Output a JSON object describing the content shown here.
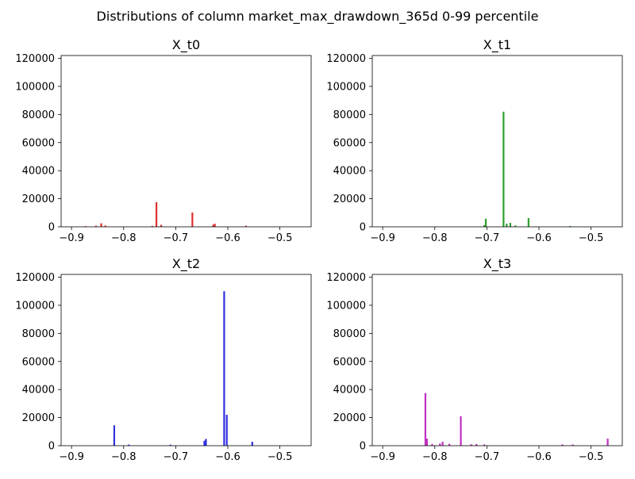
{
  "figure": {
    "suptitle": "Distributions of column market_max_drawdown_365d 0-99 percentile"
  },
  "chart_data": [
    {
      "type": "bar",
      "title": "X_t0",
      "color": "#e03030",
      "xlim": [
        -0.92,
        -0.44
      ],
      "ylim": [
        0,
        122000
      ],
      "xticks": [
        -0.9,
        -0.8,
        -0.7,
        -0.6,
        -0.5
      ],
      "xtick_labels": [
        "−0.9",
        "−0.8",
        "−0.7",
        "−0.6",
        "−0.5"
      ],
      "yticks": [
        0,
        20000,
        40000,
        60000,
        80000,
        100000,
        120000
      ],
      "ytick_labels": [
        "0",
        "20000",
        "40000",
        "60000",
        "80000",
        "100000",
        "120000"
      ],
      "bars": [
        {
          "x": -0.873,
          "y": 500
        },
        {
          "x": -0.853,
          "y": 800
        },
        {
          "x": -0.843,
          "y": 2500
        },
        {
          "x": -0.835,
          "y": 900
        },
        {
          "x": -0.745,
          "y": 600
        },
        {
          "x": -0.737,
          "y": 17500
        },
        {
          "x": -0.728,
          "y": 1400
        },
        {
          "x": -0.668,
          "y": 10200
        },
        {
          "x": -0.628,
          "y": 1500
        },
        {
          "x": -0.625,
          "y": 2200
        },
        {
          "x": -0.565,
          "y": 800
        }
      ]
    },
    {
      "type": "bar",
      "title": "X_t1",
      "color": "#2ca02c",
      "xlim": [
        -0.92,
        -0.44
      ],
      "ylim": [
        0,
        122000
      ],
      "xticks": [
        -0.9,
        -0.8,
        -0.7,
        -0.6,
        -0.5
      ],
      "xtick_labels": [
        "−0.9",
        "−0.8",
        "−0.7",
        "−0.6",
        "−0.5"
      ],
      "yticks": [
        0,
        20000,
        40000,
        60000,
        80000,
        100000,
        120000
      ],
      "ytick_labels": [
        "0",
        "20000",
        "40000",
        "60000",
        "80000",
        "100000",
        "120000"
      ],
      "bars": [
        {
          "x": -0.705,
          "y": 1200
        },
        {
          "x": -0.702,
          "y": 5800
        },
        {
          "x": -0.668,
          "y": 82000
        },
        {
          "x": -0.662,
          "y": 2200
        },
        {
          "x": -0.655,
          "y": 2800
        },
        {
          "x": -0.645,
          "y": 900
        },
        {
          "x": -0.62,
          "y": 6200
        },
        {
          "x": -0.54,
          "y": 600
        }
      ]
    },
    {
      "type": "bar",
      "title": "X_t2",
      "color": "#3030e0",
      "xlim": [
        -0.92,
        -0.44
      ],
      "ylim": [
        0,
        122000
      ],
      "xticks": [
        -0.9,
        -0.8,
        -0.7,
        -0.6,
        -0.5
      ],
      "xtick_labels": [
        "−0.9",
        "−0.8",
        "−0.7",
        "−0.6",
        "−0.5"
      ],
      "yticks": [
        0,
        20000,
        40000,
        60000,
        80000,
        100000,
        120000
      ],
      "ytick_labels": [
        "0",
        "20000",
        "40000",
        "60000",
        "80000",
        "100000",
        "120000"
      ],
      "bars": [
        {
          "x": -0.818,
          "y": 14500
        },
        {
          "x": -0.79,
          "y": 800
        },
        {
          "x": -0.71,
          "y": 700
        },
        {
          "x": -0.645,
          "y": 3500
        },
        {
          "x": -0.642,
          "y": 4800
        },
        {
          "x": -0.607,
          "y": 110000
        },
        {
          "x": -0.602,
          "y": 22000
        },
        {
          "x": -0.553,
          "y": 2800
        }
      ]
    },
    {
      "type": "bar",
      "title": "X_t3",
      "color": "#c030c0",
      "xlim": [
        -0.92,
        -0.44
      ],
      "ylim": [
        0,
        122000
      ],
      "xticks": [
        -0.9,
        -0.8,
        -0.7,
        -0.6,
        -0.5
      ],
      "xtick_labels": [
        "−0.9",
        "−0.8",
        "−0.7",
        "−0.6",
        "−0.5"
      ],
      "yticks": [
        0,
        20000,
        40000,
        60000,
        80000,
        100000,
        120000
      ],
      "ytick_labels": [
        "0",
        "20000",
        "40000",
        "60000",
        "80000",
        "100000",
        "120000"
      ],
      "bars": [
        {
          "x": -0.818,
          "y": 37500
        },
        {
          "x": -0.815,
          "y": 5000
        },
        {
          "x": -0.805,
          "y": 1200
        },
        {
          "x": -0.79,
          "y": 1500
        },
        {
          "x": -0.785,
          "y": 2800
        },
        {
          "x": -0.772,
          "y": 1300
        },
        {
          "x": -0.75,
          "y": 21000
        },
        {
          "x": -0.73,
          "y": 1000
        },
        {
          "x": -0.72,
          "y": 1200
        },
        {
          "x": -0.705,
          "y": 900
        },
        {
          "x": -0.555,
          "y": 900
        },
        {
          "x": -0.535,
          "y": 800
        },
        {
          "x": -0.468,
          "y": 5000
        }
      ]
    }
  ]
}
